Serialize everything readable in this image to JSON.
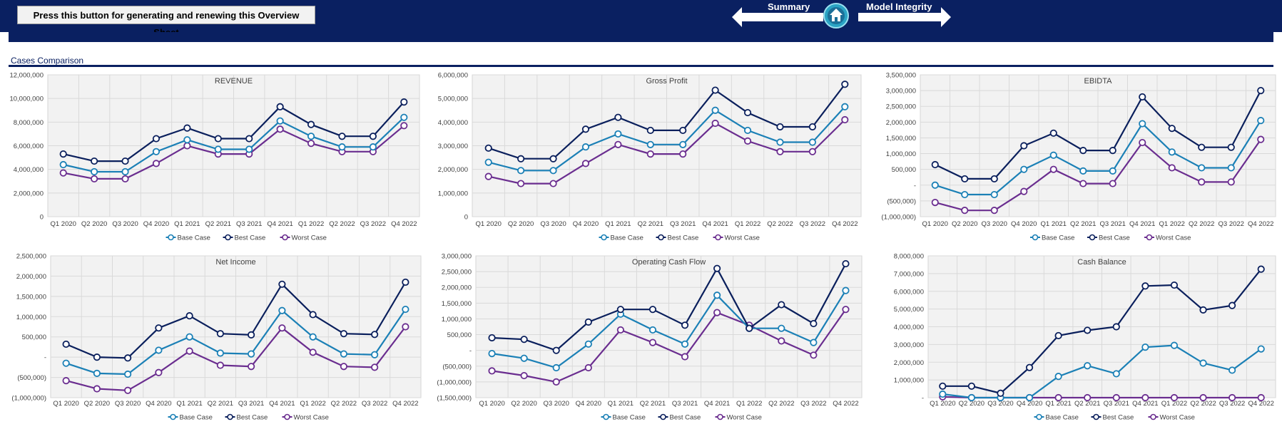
{
  "header": {
    "generate_button_label": "Press this button for generating and renewing this Overview Sheet",
    "nav_left_label": "Summary",
    "nav_right_label": "Model Integrity"
  },
  "section": {
    "title": "Cases Comparison"
  },
  "colors": {
    "navy": "#0a2061",
    "base": "#1b80b6",
    "best": "#0a1f5c",
    "worst": "#6a2d8f",
    "plot_bg": "#f2f2f2"
  },
  "chart_data": [
    {
      "type": "line",
      "title": "REVENUE",
      "categories": [
        "Q1 2020",
        "Q2 2020",
        "Q3 2020",
        "Q4 2020",
        "Q1 2021",
        "Q2 2021",
        "Q3 2021",
        "Q4 2021",
        "Q1 2022",
        "Q2 2022",
        "Q3 2022",
        "Q4 2022"
      ],
      "ylim": [
        0,
        12000000
      ],
      "yticks": [
        "12,000,000",
        "10,000,000",
        "8,000,000",
        "6,000,000",
        "4,000,000",
        "2,000,000",
        "0"
      ],
      "legend_position": "bottom",
      "series": [
        {
          "name": "Base Case",
          "values": [
            4400000,
            3800000,
            3800000,
            5500000,
            6500000,
            5700000,
            5700000,
            8100000,
            6800000,
            5900000,
            5900000,
            8400000
          ]
        },
        {
          "name": "Best Case",
          "values": [
            5300000,
            4700000,
            4700000,
            6600000,
            7500000,
            6600000,
            6600000,
            9300000,
            7800000,
            6800000,
            6800000,
            9700000
          ]
        },
        {
          "name": "Worst Case",
          "values": [
            3700000,
            3200000,
            3200000,
            4500000,
            6000000,
            5300000,
            5300000,
            7400000,
            6200000,
            5500000,
            5500000,
            7700000
          ]
        }
      ]
    },
    {
      "type": "line",
      "title": "Gross Profit",
      "categories": [
        "Q1 2020",
        "Q2 2020",
        "Q3 2020",
        "Q4 2020",
        "Q1 2021",
        "Q2 2021",
        "Q3 2021",
        "Q4 2021",
        "Q1 2022",
        "Q2 2022",
        "Q3 2022",
        "Q4 2022"
      ],
      "ylim": [
        0,
        6000000
      ],
      "yticks": [
        "6,000,000",
        "5,000,000",
        "4,000,000",
        "3,000,000",
        "2,000,000",
        "1,000,000",
        "0"
      ],
      "legend_position": "bottom",
      "series": [
        {
          "name": "Base Case",
          "values": [
            2300000,
            1950000,
            1950000,
            2950000,
            3500000,
            3050000,
            3050000,
            4500000,
            3650000,
            3150000,
            3150000,
            4650000
          ]
        },
        {
          "name": "Best Case",
          "values": [
            2900000,
            2450000,
            2450000,
            3700000,
            4200000,
            3650000,
            3650000,
            5350000,
            4400000,
            3800000,
            3800000,
            5600000
          ]
        },
        {
          "name": "Worst Case",
          "values": [
            1700000,
            1400000,
            1400000,
            2250000,
            3050000,
            2650000,
            2650000,
            3950000,
            3200000,
            2750000,
            2750000,
            4100000
          ]
        }
      ]
    },
    {
      "type": "line",
      "title": "EBIDTA",
      "categories": [
        "Q1 2020",
        "Q2 2020",
        "Q3 2020",
        "Q4 2020",
        "Q1 2021",
        "Q2 2021",
        "Q3 2021",
        "Q4 2021",
        "Q1 2022",
        "Q2 2022",
        "Q3 2022",
        "Q4 2022"
      ],
      "ylim": [
        -1000000,
        3500000
      ],
      "yticks": [
        "3,500,000",
        "3,000,000",
        "2,500,000",
        "2,000,000",
        "1,500,000",
        "1,000,000",
        "500,000",
        "-",
        "(500,000)",
        "(1,000,000)"
      ],
      "legend_position": "bottom",
      "series": [
        {
          "name": "Base Case",
          "values": [
            0,
            -300000,
            -300000,
            500000,
            950000,
            450000,
            450000,
            1950000,
            1050000,
            550000,
            550000,
            2050000
          ]
        },
        {
          "name": "Best Case",
          "values": [
            650000,
            200000,
            200000,
            1250000,
            1650000,
            1100000,
            1100000,
            2800000,
            1800000,
            1200000,
            1200000,
            3000000
          ]
        },
        {
          "name": "Worst Case",
          "values": [
            -550000,
            -800000,
            -800000,
            -200000,
            500000,
            50000,
            50000,
            1350000,
            550000,
            100000,
            100000,
            1450000
          ]
        }
      ]
    },
    {
      "type": "line",
      "title": "Net Income",
      "categories": [
        "Q1 2020",
        "Q2 2020",
        "Q3 2020",
        "Q4 2020",
        "Q1 2021",
        "Q2 2021",
        "Q3 2021",
        "Q4 2021",
        "Q1 2022",
        "Q2 2022",
        "Q3 2022",
        "Q4 2022"
      ],
      "ylim": [
        -1000000,
        2500000
      ],
      "yticks": [
        "2,500,000",
        "2,000,000",
        "1,500,000",
        "1,000,000",
        "500,000",
        "-",
        "(500,000)",
        "(1,000,000)"
      ],
      "legend_position": "bottom",
      "series": [
        {
          "name": "Base Case",
          "values": [
            -150000,
            -400000,
            -420000,
            170000,
            500000,
            100000,
            80000,
            1150000,
            500000,
            80000,
            60000,
            1180000
          ]
        },
        {
          "name": "Best Case",
          "values": [
            320000,
            0,
            -20000,
            720000,
            1020000,
            580000,
            550000,
            1800000,
            1050000,
            580000,
            560000,
            1850000
          ]
        },
        {
          "name": "Worst Case",
          "values": [
            -580000,
            -780000,
            -820000,
            -380000,
            150000,
            -200000,
            -230000,
            720000,
            120000,
            -230000,
            -250000,
            750000
          ]
        }
      ]
    },
    {
      "type": "line",
      "title": "Operating Cash Flow",
      "categories": [
        "Q1 2020",
        "Q2 2020",
        "Q3 2020",
        "Q4 2020",
        "Q1 2021",
        "Q2 2021",
        "Q3 2021",
        "Q4 2021",
        "Q1 2022",
        "Q2 2022",
        "Q3 2022",
        "Q4 2022"
      ],
      "ylim": [
        -1500000,
        3000000
      ],
      "yticks": [
        "3,000,000",
        "2,500,000",
        "2,000,000",
        "1,500,000",
        "1,000,000",
        "500,000",
        "-",
        "(500,000)",
        "(1,000,000)",
        "(1,500,000)"
      ],
      "legend_position": "bottom",
      "series": [
        {
          "name": "Base Case",
          "values": [
            -100000,
            -250000,
            -550000,
            200000,
            1150000,
            650000,
            200000,
            1750000,
            700000,
            700000,
            250000,
            1900000
          ]
        },
        {
          "name": "Best Case",
          "values": [
            400000,
            350000,
            0,
            900000,
            1300000,
            1300000,
            800000,
            2600000,
            700000,
            1450000,
            850000,
            2750000
          ]
        },
        {
          "name": "Worst Case",
          "values": [
            -650000,
            -800000,
            -1000000,
            -550000,
            650000,
            250000,
            -200000,
            1200000,
            800000,
            300000,
            -150000,
            1300000
          ]
        }
      ]
    },
    {
      "type": "line",
      "title": "Cash Balance",
      "categories": [
        "Q1 2020",
        "Q2 2020",
        "Q3 2020",
        "Q4 2020",
        "Q1 2021",
        "Q2 2021",
        "Q3 2021",
        "Q4 2021",
        "Q1 2022",
        "Q2 2022",
        "Q3 2022",
        "Q4 2022"
      ],
      "ylim": [
        0,
        8000000
      ],
      "yticks": [
        "8,000,000",
        "7,000,000",
        "6,000,000",
        "5,000,000",
        "4,000,000",
        "3,000,000",
        "2,000,000",
        "1,000,000",
        "-"
      ],
      "legend_position": "bottom",
      "series": [
        {
          "name": "Base Case",
          "values": [
            200000,
            0,
            0,
            0,
            1200000,
            1800000,
            1350000,
            2850000,
            2950000,
            1950000,
            1550000,
            2750000
          ]
        },
        {
          "name": "Best Case",
          "values": [
            650000,
            650000,
            250000,
            1700000,
            3500000,
            3800000,
            4000000,
            6300000,
            6350000,
            4950000,
            5200000,
            7250000
          ]
        },
        {
          "name": "Worst Case",
          "values": [
            50000,
            0,
            0,
            0,
            0,
            0,
            0,
            0,
            0,
            0,
            0,
            0
          ]
        }
      ]
    }
  ]
}
